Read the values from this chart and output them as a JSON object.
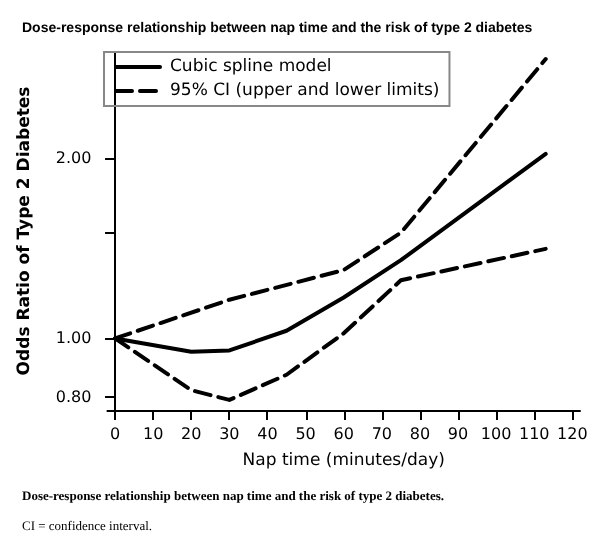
{
  "chart_data": {
    "type": "line",
    "title": "Dose-response relationship between nap time and the risk of type 2 diabetes",
    "xlabel": "Nap time (minutes/day)",
    "ylabel": "Odds Ratio of Type 2 Diabetes",
    "series": [
      {
        "name": "Cubic spline model",
        "color": "#000000",
        "line_style": "solid",
        "x": [
          0,
          20,
          30,
          45,
          60,
          75,
          113
        ],
        "values": [
          1.0,
          0.95,
          0.955,
          1.03,
          1.17,
          1.35,
          2.03
        ]
      },
      {
        "name": "95% CI (upper and lower limits)",
        "color": "#000000",
        "line_style": "dashed",
        "x": [
          0,
          30,
          60,
          75,
          113
        ],
        "values": [
          1.0,
          1.16,
          1.3,
          1.5,
          2.92
        ]
      },
      {
        "color": "#000000",
        "line_style": "dashed",
        "x": [
          0,
          20,
          30,
          45,
          60,
          75,
          113
        ],
        "values": [
          1.0,
          0.82,
          0.79,
          0.87,
          1.02,
          1.25,
          1.41
        ]
      }
    ],
    "xlim": [
      -2,
      122
    ],
    "xticks": [
      0,
      10,
      20,
      30,
      40,
      50,
      60,
      70,
      80,
      90,
      100,
      110,
      120
    ],
    "ylim": [
      0.76,
      3.0
    ],
    "yticks": [
      {
        "value": 0.8,
        "label": "0.80"
      },
      {
        "value": 1.0,
        "label": "1.00"
      },
      {
        "value": 1.5,
        "label": null
      },
      {
        "value": 2.0,
        "label": "2.00"
      }
    ],
    "log": "y",
    "grid": false,
    "legend": "top left",
    "marker": "none",
    "annotations": [
      "Dose-response relationship between nap time and the risk of type 2 diabetes.",
      "CI = confidence interval."
    ]
  }
}
